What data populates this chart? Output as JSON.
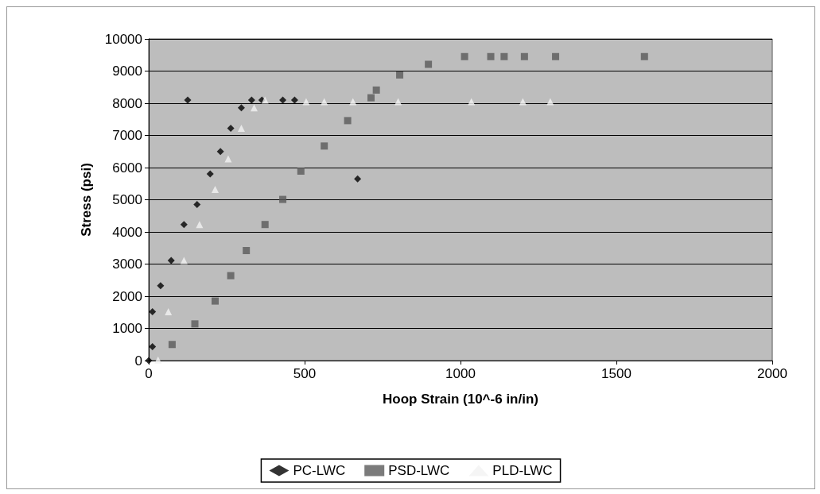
{
  "chart_data": {
    "type": "scatter",
    "xlabel": "Hoop Strain (10^-6 in/in)",
    "ylabel": "Stress (psi)",
    "xlim": [
      0,
      2000
    ],
    "xticks": [
      0,
      500,
      1000,
      1500,
      2000
    ],
    "ylim": [
      0,
      10000
    ],
    "yticks": [
      0,
      1000,
      2000,
      3000,
      4000,
      5000,
      6000,
      7000,
      8000,
      9000,
      10000
    ],
    "grid": "y",
    "legend": "bottom",
    "series": [
      {
        "name": "PC-LWC",
        "color": "#000000",
        "marker": "diamond",
        "x": [
          0,
          12,
          12,
          38,
          72,
          113,
          155,
          197,
          230,
          263,
          297,
          330,
          363,
          125,
          430,
          468,
          670
        ],
        "values": [
          0,
          430,
          1520,
          2330,
          3110,
          4230,
          4850,
          5800,
          6500,
          7220,
          7860,
          8100,
          8100,
          8100,
          8100,
          8100,
          5650
        ]
      },
      {
        "name": "PSD-LWC",
        "color": "#5a5a5a",
        "marker": "square",
        "x": [
          75,
          148,
          213,
          263,
          313,
          373,
          430,
          488,
          563,
          638,
          713,
          730,
          805,
          897,
          1013,
          1097,
          1140,
          1205,
          1305,
          1590
        ],
        "values": [
          500,
          1140,
          1850,
          2640,
          3420,
          4230,
          5010,
          5890,
          6670,
          7460,
          8170,
          8410,
          8880,
          9210,
          9450,
          9450,
          9450,
          9450,
          9450,
          9450
        ]
      },
      {
        "name": "PLD-LWC",
        "color": "#f2f2f2",
        "marker": "triangle",
        "x": [
          30,
          63,
          113,
          163,
          213,
          255,
          297,
          338,
          373,
          505,
          563,
          655,
          800,
          1035,
          1200,
          1288
        ],
        "values": [
          20,
          1520,
          3110,
          4230,
          5320,
          6270,
          7220,
          7860,
          8100,
          8050,
          8050,
          8050,
          8050,
          8050,
          8050,
          8050
        ]
      }
    ]
  }
}
